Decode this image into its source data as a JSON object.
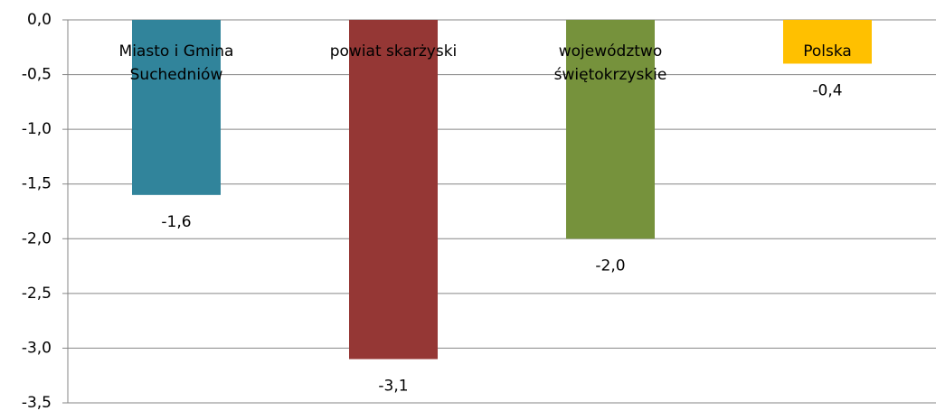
{
  "chart_data": {
    "type": "bar",
    "categories": [
      "Miasto i Gmina\nSuchedniów",
      "powiat skarżyski",
      "województwo\nświętokrzyskie",
      "Polska"
    ],
    "values": [
      -1.6,
      -3.1,
      -2.0,
      -0.4
    ],
    "value_labels": [
      "-1,6",
      "-3,1",
      "-2,0",
      "-0,4"
    ],
    "colors": [
      "#31849b",
      "#953735",
      "#76923c",
      "#ffc000"
    ],
    "ylim": [
      -3.5,
      0
    ],
    "yticks": [
      {
        "value": 0,
        "label": "0,0"
      },
      {
        "value": -0.5,
        "label": "-0,5"
      },
      {
        "value": -1,
        "label": "-1,0"
      },
      {
        "value": -1.5,
        "label": "-1,5"
      },
      {
        "value": -2,
        "label": "-2,0"
      },
      {
        "value": -2.5,
        "label": "-2,5"
      },
      {
        "value": -3,
        "label": "-3,0"
      },
      {
        "value": -3.5,
        "label": "-3,5"
      }
    ],
    "grid": true
  }
}
